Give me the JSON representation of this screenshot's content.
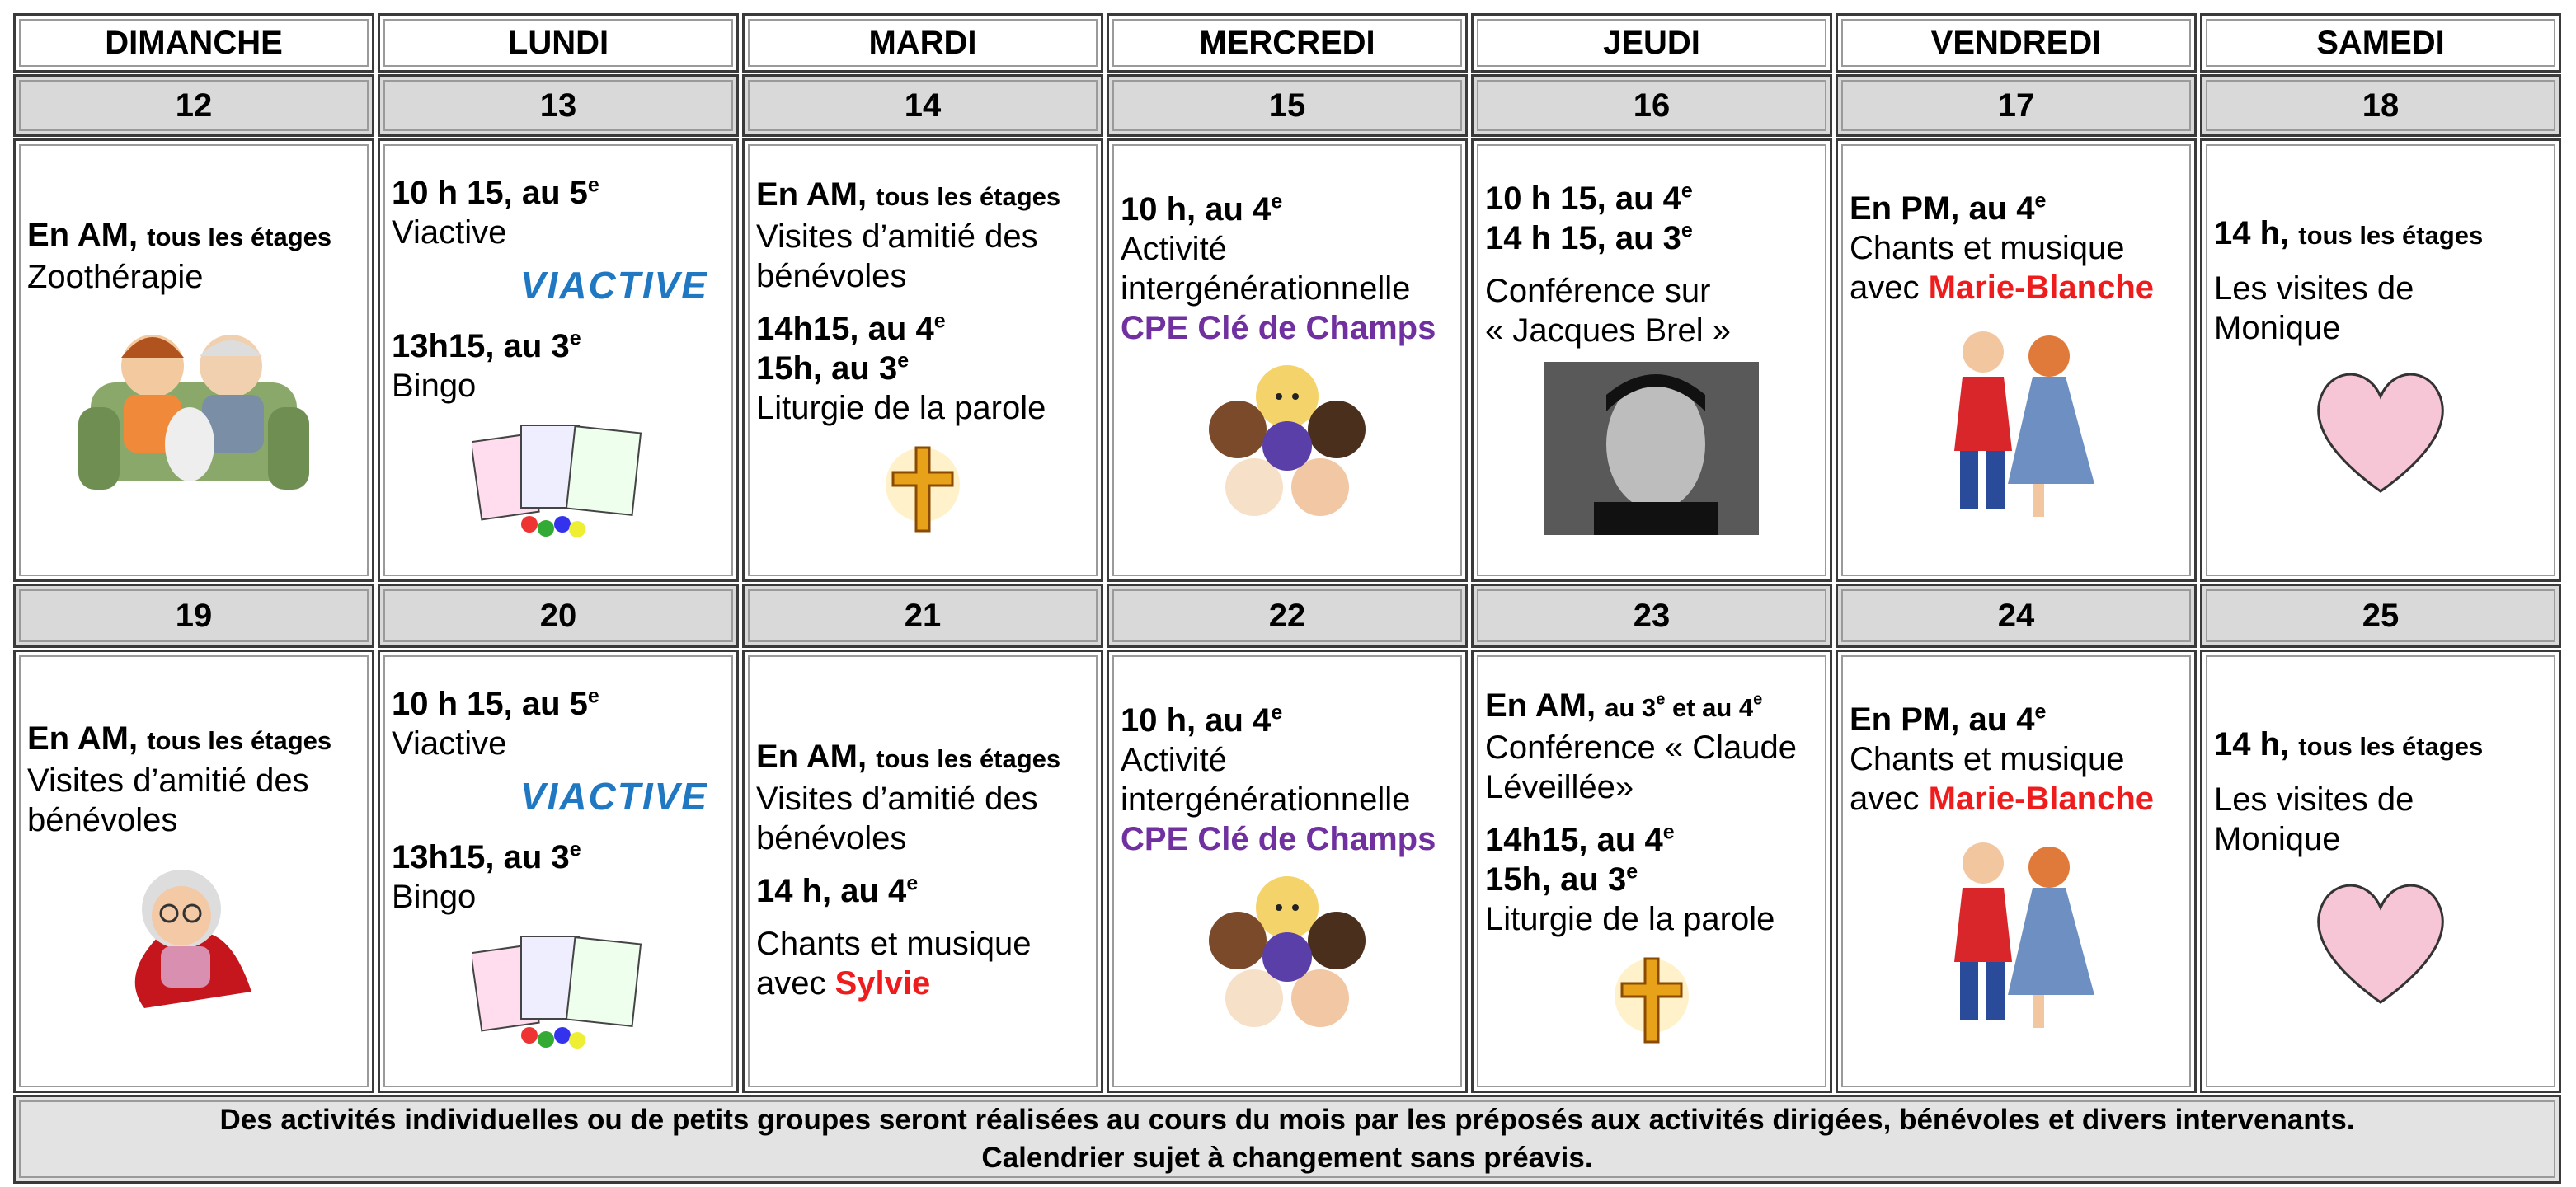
{
  "header": {
    "days": [
      "DIMANCHE",
      "LUNDI",
      "MARDI",
      "MERCREDI",
      "JEUDI",
      "VENDREDI",
      "SAMEDI"
    ]
  },
  "weeks": [
    {
      "dates": [
        12,
        13,
        14,
        15,
        16,
        17,
        18
      ],
      "cells": [
        {
          "items": [
            {
              "lines": [
                [
                  {
                    "text": "En AM, ",
                    "style": "b"
                  },
                  {
                    "text": "tous les étages",
                    "style": "s"
                  }
                ],
                [
                  {
                    "text": "Zoothérapie",
                    "style": "n"
                  }
                ]
              ]
            }
          ]
        },
        {
          "items": [
            {
              "lines": [
                [
                  {
                    "text": "10 h 15, au 5",
                    "style": "b"
                  },
                  {
                    "text": "e",
                    "style": "sup"
                  }
                ],
                [
                  {
                    "text": "Viactive",
                    "style": "n"
                  }
                ]
              ]
            },
            {
              "logo": "VIACTIVE"
            },
            {
              "lines": [
                [
                  {
                    "text": "13h15, au 3",
                    "style": "b"
                  },
                  {
                    "text": "e",
                    "style": "sup"
                  }
                ],
                [
                  {
                    "text": "Bingo",
                    "style": "n"
                  }
                ]
              ]
            }
          ]
        },
        {
          "items": [
            {
              "lines": [
                [
                  {
                    "text": "En AM, ",
                    "style": "b"
                  },
                  {
                    "text": "tous les étages",
                    "style": "s"
                  }
                ],
                [
                  {
                    "text": "Visites d’amitié des",
                    "style": "n"
                  }
                ],
                [
                  {
                    "text": "bénévoles",
                    "style": "n"
                  }
                ]
              ]
            },
            {
              "lines": [
                [
                  {
                    "text": "14h15, au 4",
                    "style": "b"
                  },
                  {
                    "text": "e",
                    "style": "sup"
                  }
                ],
                [
                  {
                    "text": "15h, au 3",
                    "style": "b"
                  },
                  {
                    "text": "e",
                    "style": "sup"
                  }
                ],
                [
                  {
                    "text": "Liturgie de la parole",
                    "style": "n"
                  }
                ]
              ]
            }
          ]
        },
        {
          "items": [
            {
              "lines": [
                [
                  {
                    "text": "10 h, au 4",
                    "style": "b"
                  },
                  {
                    "text": "e",
                    "style": "sup"
                  }
                ],
                [
                  {
                    "text": "Activité",
                    "style": "n"
                  }
                ],
                [
                  {
                    "text": "intergénérationnelle",
                    "style": "n"
                  }
                ],
                [
                  {
                    "text": "CPE Clé de Champs",
                    "style": "purple"
                  }
                ]
              ]
            }
          ]
        },
        {
          "items": [
            {
              "lines": [
                [
                  {
                    "text": "10 h 15, au 4",
                    "style": "b"
                  },
                  {
                    "text": "e",
                    "style": "sup"
                  }
                ],
                [
                  {
                    "text": "14 h 15, au 3",
                    "style": "b"
                  },
                  {
                    "text": "e",
                    "style": "sup"
                  }
                ]
              ]
            },
            {
              "lines": [
                [
                  {
                    "text": "Conférence sur",
                    "style": "n"
                  }
                ],
                [
                  {
                    "text": "« Jacques Brel »",
                    "style": "n"
                  }
                ]
              ]
            }
          ]
        },
        {
          "items": [
            {
              "lines": [
                [
                  {
                    "text": "En PM, au 4",
                    "style": "b"
                  },
                  {
                    "text": "e",
                    "style": "sup"
                  }
                ],
                [
                  {
                    "text": "Chants et musique",
                    "style": "n"
                  }
                ],
                [
                  {
                    "text": "avec ",
                    "style": "n"
                  },
                  {
                    "text": "Marie-Blanche",
                    "style": "red"
                  }
                ]
              ]
            }
          ]
        },
        {
          "items": [
            {
              "lines": [
                [
                  {
                    "text": "14 h, ",
                    "style": "b"
                  },
                  {
                    "text": "tous les étages",
                    "style": "s"
                  }
                ]
              ]
            },
            {
              "lines": [
                [
                  {
                    "text": "Les visites de",
                    "style": "n"
                  }
                ],
                [
                  {
                    "text": "Monique",
                    "style": "n"
                  }
                ]
              ]
            }
          ]
        }
      ]
    },
    {
      "dates": [
        19,
        20,
        21,
        22,
        23,
        24,
        25
      ],
      "cells": [
        {
          "items": [
            {
              "lines": [
                [
                  {
                    "text": "En AM, ",
                    "style": "b"
                  },
                  {
                    "text": "tous les étages",
                    "style": "s"
                  }
                ],
                [
                  {
                    "text": "Visites d’amitié des",
                    "style": "n"
                  }
                ],
                [
                  {
                    "text": "bénévoles",
                    "style": "n"
                  }
                ]
              ]
            }
          ]
        },
        {
          "items": [
            {
              "lines": [
                [
                  {
                    "text": "10 h 15, au 5",
                    "style": "b"
                  },
                  {
                    "text": "e",
                    "style": "sup"
                  }
                ],
                [
                  {
                    "text": "Viactive",
                    "style": "n"
                  }
                ]
              ]
            },
            {
              "logo": "VIACTIVE"
            },
            {
              "lines": [
                [
                  {
                    "text": "13h15, au 3",
                    "style": "b"
                  },
                  {
                    "text": "e",
                    "style": "sup"
                  }
                ],
                [
                  {
                    "text": "Bingo",
                    "style": "n"
                  }
                ]
              ]
            }
          ]
        },
        {
          "items": [
            {
              "lines": [
                [
                  {
                    "text": "En AM, ",
                    "style": "b"
                  },
                  {
                    "text": "tous les étages",
                    "style": "s"
                  }
                ],
                [
                  {
                    "text": "Visites d’amitié des",
                    "style": "n"
                  }
                ],
                [
                  {
                    "text": "bénévoles",
                    "style": "n"
                  }
                ]
              ]
            },
            {
              "lines": [
                [
                  {
                    "text": "14 h, au 4",
                    "style": "b"
                  },
                  {
                    "text": "e",
                    "style": "sup"
                  }
                ]
              ]
            },
            {
              "lines": [
                [
                  {
                    "text": "Chants et musique",
                    "style": "n"
                  }
                ],
                [
                  {
                    "text": "avec ",
                    "style": "n"
                  },
                  {
                    "text": "Sylvie",
                    "style": "red"
                  }
                ]
              ]
            }
          ]
        },
        {
          "items": [
            {
              "lines": [
                [
                  {
                    "text": "10 h, au 4",
                    "style": "b"
                  },
                  {
                    "text": "e",
                    "style": "sup"
                  }
                ],
                [
                  {
                    "text": "Activité",
                    "style": "n"
                  }
                ],
                [
                  {
                    "text": "intergénérationnelle",
                    "style": "n"
                  }
                ],
                [
                  {
                    "text": "CPE Clé de Champs",
                    "style": "purple"
                  }
                ]
              ]
            }
          ]
        },
        {
          "items": [
            {
              "lines": [
                [
                  {
                    "text": "En AM, ",
                    "style": "b"
                  },
                  {
                    "text": "au 3",
                    "style": "s"
                  },
                  {
                    "text": "e",
                    "style": "ssup"
                  },
                  {
                    "text": " et au 4",
                    "style": "s"
                  },
                  {
                    "text": "e",
                    "style": "ssup"
                  }
                ],
                [
                  {
                    "text": "Conférence « Claude",
                    "style": "n"
                  }
                ],
                [
                  {
                    "text": "Léveillée»",
                    "style": "n"
                  }
                ]
              ]
            },
            {
              "lines": [
                [
                  {
                    "text": "14h15, au 4",
                    "style": "b"
                  },
                  {
                    "text": "e",
                    "style": "sup"
                  }
                ],
                [
                  {
                    "text": "15h, au 3",
                    "style": "b"
                  },
                  {
                    "text": "e",
                    "style": "sup"
                  }
                ],
                [
                  {
                    "text": "Liturgie de la parole",
                    "style": "n"
                  }
                ]
              ]
            }
          ]
        },
        {
          "items": [
            {
              "lines": [
                [
                  {
                    "text": "En PM, au 4",
                    "style": "b"
                  },
                  {
                    "text": "e",
                    "style": "sup"
                  }
                ],
                [
                  {
                    "text": "Chants et musique",
                    "style": "n"
                  }
                ],
                [
                  {
                    "text": "avec ",
                    "style": "n"
                  },
                  {
                    "text": "Marie-Blanche",
                    "style": "red"
                  }
                ]
              ]
            }
          ]
        },
        {
          "items": [
            {
              "lines": [
                [
                  {
                    "text": "14 h, ",
                    "style": "b"
                  },
                  {
                    "text": "tous les étages",
                    "style": "s"
                  }
                ]
              ]
            },
            {
              "lines": [
                [
                  {
                    "text": "Les visites de",
                    "style": "n"
                  }
                ],
                [
                  {
                    "text": "Monique",
                    "style": "n"
                  }
                ]
              ]
            }
          ]
        }
      ]
    }
  ],
  "footer": {
    "lines": [
      "Des activités individuelles ou de petits groupes seront réalisées au cours du mois par les préposés aux activités dirigées, bénévoles et divers intervenants.",
      "Calendrier sujet à changement sans préavis."
    ]
  }
}
